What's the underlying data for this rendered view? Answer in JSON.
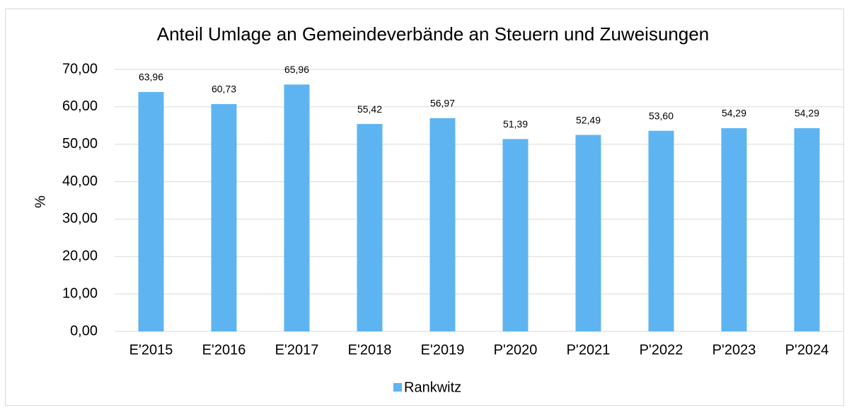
{
  "chart_data": {
    "type": "bar",
    "title": "Anteil Umlage an Gemeindeverbände an Steuern und Zuweisungen",
    "y_label": "%",
    "categories": [
      "E'2015",
      "E'2016",
      "E'2017",
      "E'2018",
      "E'2019",
      "P'2020",
      "P'2021",
      "P'2022",
      "P'2023",
      "P'2024"
    ],
    "series": [
      {
        "name": "Rankwitz",
        "color": "#5eb4f1",
        "values": [
          63.96,
          60.73,
          65.96,
          55.42,
          56.97,
          51.39,
          52.49,
          53.6,
          54.29,
          54.29
        ],
        "value_labels": [
          "63,96",
          "60,73",
          "65,96",
          "55,42",
          "56,97",
          "51,39",
          "52,49",
          "53,60",
          "54,29",
          "54,29"
        ]
      }
    ],
    "ylim": [
      0,
      70
    ],
    "yticks": [
      {
        "value": 0,
        "label": "0,00"
      },
      {
        "value": 10,
        "label": "10,00"
      },
      {
        "value": 20,
        "label": "20,00"
      },
      {
        "value": 30,
        "label": "30,00"
      },
      {
        "value": 40,
        "label": "40,00"
      },
      {
        "value": 50,
        "label": "50,00"
      },
      {
        "value": 60,
        "label": "60,00"
      },
      {
        "value": 70,
        "label": "70,00"
      }
    ],
    "grid": true,
    "legend": "bottom"
  }
}
